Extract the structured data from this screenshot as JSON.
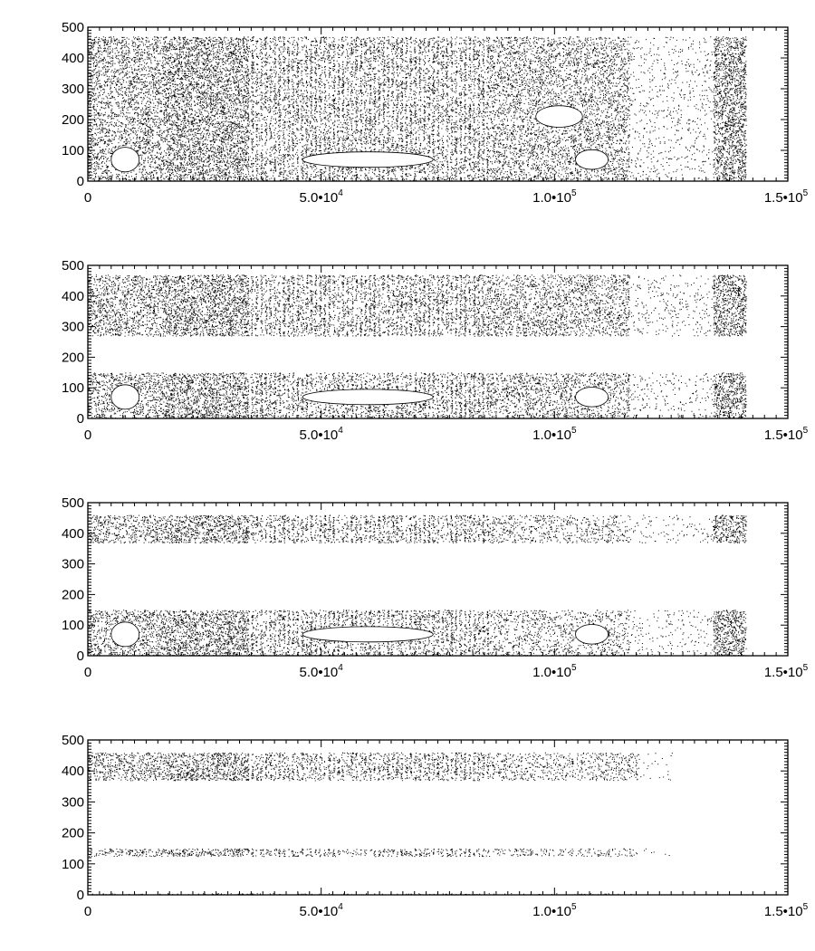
{
  "chart_data": [
    {
      "type": "scatter",
      "panel": 1,
      "xlim": [
        0,
        150000
      ],
      "ylim": [
        0,
        500
      ],
      "x_ticks": [
        0,
        50000,
        100000,
        150000
      ],
      "x_tick_labels": [
        {
          "base": "0",
          "exp": ""
        },
        {
          "base": "5.0•10",
          "exp": "4"
        },
        {
          "base": "1.0•10",
          "exp": "5"
        },
        {
          "base": "1.5•10",
          "exp": "5"
        }
      ],
      "y_ticks": [
        0,
        100,
        200,
        300,
        400,
        500
      ],
      "y_tick_labels": [
        "0",
        "100",
        "200",
        "300",
        "400",
        "500"
      ],
      "grid": false,
      "point_color": "#000000",
      "bands": [
        [
          0,
          120
        ],
        [
          120,
          290
        ],
        [
          290,
          470
        ]
      ],
      "regions": [
        {
          "x": [
            0,
            16000
          ],
          "density": 0.55
        },
        {
          "x": [
            16000,
            34000
          ],
          "density": 0.75
        },
        {
          "x": [
            34000,
            86000
          ],
          "density": 0.85,
          "striped": true
        },
        {
          "x": [
            86000,
            116000
          ],
          "density": 0.5
        },
        {
          "x": [
            116000,
            134000
          ],
          "density": 0.12
        },
        {
          "x": [
            134000,
            141000
          ],
          "density": 0.8
        }
      ],
      "holes": [
        {
          "cx": 60000,
          "cy": 70,
          "rx": 14000,
          "ry": 25
        },
        {
          "cx": 8000,
          "cy": 70,
          "rx": 3000,
          "ry": 40
        },
        {
          "cx": 108000,
          "cy": 70,
          "rx": 3500,
          "ry": 32
        },
        {
          "cx": 101000,
          "cy": 210,
          "rx": 5000,
          "ry": 35
        }
      ]
    },
    {
      "type": "scatter",
      "panel": 2,
      "xlim": [
        0,
        150000
      ],
      "ylim": [
        0,
        500
      ],
      "x_ticks": [
        0,
        50000,
        100000,
        150000
      ],
      "x_tick_labels": [
        {
          "base": "0",
          "exp": ""
        },
        {
          "base": "5.0•10",
          "exp": "4"
        },
        {
          "base": "1.0•10",
          "exp": "5"
        },
        {
          "base": "1.5•10",
          "exp": "5"
        }
      ],
      "y_ticks": [
        0,
        100,
        200,
        300,
        400,
        500
      ],
      "y_tick_labels": [
        "0",
        "100",
        "200",
        "300",
        "400",
        "500"
      ],
      "grid": false,
      "point_color": "#000000",
      "bands": [
        [
          0,
          150
        ],
        [
          270,
          470
        ]
      ],
      "regions": [
        {
          "x": [
            0,
            16000
          ],
          "density": 0.55
        },
        {
          "x": [
            16000,
            34000
          ],
          "density": 0.75
        },
        {
          "x": [
            34000,
            86000
          ],
          "density": 0.85,
          "striped": true
        },
        {
          "x": [
            86000,
            116000
          ],
          "density": 0.5
        },
        {
          "x": [
            116000,
            134000
          ],
          "density": 0.12
        },
        {
          "x": [
            134000,
            141000
          ],
          "density": 0.8
        }
      ],
      "holes": [
        {
          "cx": 60000,
          "cy": 70,
          "rx": 14000,
          "ry": 25
        },
        {
          "cx": 8000,
          "cy": 70,
          "rx": 3000,
          "ry": 40
        },
        {
          "cx": 108000,
          "cy": 70,
          "rx": 3500,
          "ry": 32
        }
      ]
    },
    {
      "type": "scatter",
      "panel": 3,
      "xlim": [
        0,
        150000
      ],
      "ylim": [
        0,
        500
      ],
      "x_ticks": [
        0,
        50000,
        100000,
        150000
      ],
      "x_tick_labels": [
        {
          "base": "0",
          "exp": ""
        },
        {
          "base": "5.0•10",
          "exp": "4"
        },
        {
          "base": "1.0•10",
          "exp": "5"
        },
        {
          "base": "1.5•10",
          "exp": "5"
        }
      ],
      "y_ticks": [
        0,
        100,
        200,
        300,
        400,
        500
      ],
      "y_tick_labels": [
        "0",
        "100",
        "200",
        "300",
        "400",
        "500"
      ],
      "grid": false,
      "point_color": "#000000",
      "bands": [
        [
          0,
          150
        ],
        [
          370,
          460
        ]
      ],
      "regions": [
        {
          "x": [
            0,
            16000
          ],
          "density": 0.55
        },
        {
          "x": [
            16000,
            34000
          ],
          "density": 0.75
        },
        {
          "x": [
            34000,
            86000
          ],
          "density": 0.85,
          "striped": true
        },
        {
          "x": [
            86000,
            116000
          ],
          "density": 0.35
        },
        {
          "x": [
            116000,
            134000
          ],
          "density": 0.1
        },
        {
          "x": [
            134000,
            141000
          ],
          "density": 0.8
        }
      ],
      "holes": [
        {
          "cx": 60000,
          "cy": 70,
          "rx": 14000,
          "ry": 25
        },
        {
          "cx": 8000,
          "cy": 70,
          "rx": 3000,
          "ry": 40
        },
        {
          "cx": 108000,
          "cy": 70,
          "rx": 3500,
          "ry": 32
        }
      ]
    },
    {
      "type": "scatter",
      "panel": 4,
      "xlim": [
        0,
        150000
      ],
      "ylim": [
        0,
        500
      ],
      "x_ticks": [
        0,
        50000,
        100000,
        150000
      ],
      "x_tick_labels": [
        {
          "base": "0",
          "exp": ""
        },
        {
          "base": "5.0•10",
          "exp": "4"
        },
        {
          "base": "1.0•10",
          "exp": "5"
        },
        {
          "base": "1.5•10",
          "exp": "5"
        }
      ],
      "y_ticks": [
        0,
        100,
        200,
        300,
        400,
        500
      ],
      "y_tick_labels": [
        "0",
        "100",
        "200",
        "300",
        "400",
        "500"
      ],
      "grid": false,
      "point_color": "#000000",
      "bands": [
        [
          0,
          5
        ],
        [
          125,
          150
        ],
        [
          370,
          460
        ]
      ],
      "regions": [
        {
          "x": [
            0,
            16000
          ],
          "density": 0.55
        },
        {
          "x": [
            16000,
            34000
          ],
          "density": 0.75
        },
        {
          "x": [
            34000,
            86000
          ],
          "density": 0.85,
          "striped": true
        },
        {
          "x": [
            86000,
            118000
          ],
          "density": 0.35
        },
        {
          "x": [
            118000,
            126000
          ],
          "density": 0.05
        }
      ],
      "holes": []
    }
  ]
}
